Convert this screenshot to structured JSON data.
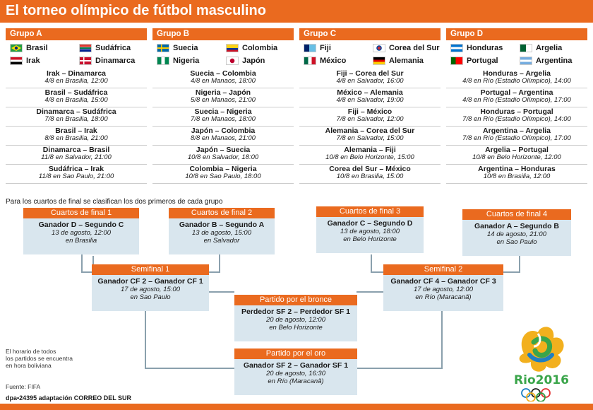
{
  "title": "El torneo olímpico de fútbol masculino",
  "groups": [
    {
      "name": "Grupo A",
      "teams": [
        {
          "name": "Brasil",
          "flag": "brazil"
        },
        {
          "name": "Sudáfrica",
          "flag": "south-africa"
        },
        {
          "name": "Irak",
          "flag": "iraq"
        },
        {
          "name": "Dinamarca",
          "flag": "denmark"
        }
      ],
      "matches": [
        {
          "teams": "Irak – Dinamarca",
          "info": "4/8 en Brasilia, 12:00"
        },
        {
          "teams": "Brasil – Sudáfrica",
          "info": "4/8 en Brasilia, 15:00"
        },
        {
          "teams": "Dinamarca – Sudáfrica",
          "info": "7/8 en Brasilia, 18:00"
        },
        {
          "teams": "Brasil – Irak",
          "info": "8/8 en Brasilia, 21:00"
        },
        {
          "teams": "Dinamarca – Brasil",
          "info": "11/8 en Salvador, 21:00"
        },
        {
          "teams": "Sudáfrica – Irak",
          "info": "11/8 en Sao Paulo, 21:00"
        }
      ]
    },
    {
      "name": "Grupo B",
      "teams": [
        {
          "name": "Suecia",
          "flag": "sweden"
        },
        {
          "name": "Colombia",
          "flag": "colombia"
        },
        {
          "name": "Nigeria",
          "flag": "nigeria"
        },
        {
          "name": "Japón",
          "flag": "japan"
        }
      ],
      "matches": [
        {
          "teams": "Suecia – Colombia",
          "info": "4/8 en Manaos, 18:00"
        },
        {
          "teams": "Nigeria – Japón",
          "info": "5/8 en Manaos, 21:00"
        },
        {
          "teams": "Suecia – Nigeria",
          "info": "7/8 en Manaos, 18:00"
        },
        {
          "teams": "Japón – Colombia",
          "info": "8/8 en Manaos, 21:00"
        },
        {
          "teams": "Japón – Suecia",
          "info": "10/8 en Salvador, 18:00"
        },
        {
          "teams": "Colombia – Nigeria",
          "info": "10/8 en Sao Paulo, 18:00"
        }
      ]
    },
    {
      "name": "Grupo C",
      "teams": [
        {
          "name": "Fiji",
          "flag": "fiji"
        },
        {
          "name": "Corea del Sur",
          "flag": "south-korea"
        },
        {
          "name": "México",
          "flag": "mexico"
        },
        {
          "name": "Alemania",
          "flag": "germany"
        }
      ],
      "matches": [
        {
          "teams": "Fiji – Corea del Sur",
          "info": "4/8 en Salvador, 16:00"
        },
        {
          "teams": "México – Alemania",
          "info": "4/8 en Salvador, 19:00"
        },
        {
          "teams": "Fiji – México",
          "info": "7/8 en Salvador, 12:00"
        },
        {
          "teams": "Alemania – Corea del Sur",
          "info": "7/8 en Salvador, 15:00"
        },
        {
          "teams": "Alemania – Fiji",
          "info": "10/8 en Belo Horizonte, 15:00"
        },
        {
          "teams": "Corea del Sur – México",
          "info": "10/8 en Brasilia, 15:00"
        }
      ]
    },
    {
      "name": "Grupo D",
      "teams": [
        {
          "name": "Honduras",
          "flag": "honduras"
        },
        {
          "name": "Argelia",
          "flag": "algeria"
        },
        {
          "name": "Portugal",
          "flag": "portugal"
        },
        {
          "name": "Argentina",
          "flag": "argentina"
        }
      ],
      "matches": [
        {
          "teams": "Honduras – Argelia",
          "info": "4/8 en Río (Estadio Olímpico), 14:00"
        },
        {
          "teams": "Portugal – Argentina",
          "info": "4/8 en Río (Estadio Olímpico), 17:00"
        },
        {
          "teams": "Honduras – Portugal",
          "info": "7/8 en Río (Estadio Olímpico), 14:00"
        },
        {
          "teams": "Argentina – Argelia",
          "info": "7/8 en Río (Estadio Olímpico), 17:00"
        },
        {
          "teams": "Argelia – Portugal",
          "info": "10/8 en Belo Horizonte, 12:00"
        },
        {
          "teams": "Argentina – Honduras",
          "info": "10/8 en Brasilia, 12:00"
        }
      ]
    }
  ],
  "note": "Para los cuartos de final se clasifican los dos primeros de cada grupo",
  "bracket": {
    "qf1": {
      "title": "Cuartos de final  1",
      "teams": "Ganador D – Segundo C",
      "date": "13 de agosto, 12:00",
      "venue": "en Brasilia"
    },
    "qf2": {
      "title": "Cuartos de final  2",
      "teams": "Ganador B – Segundo  A",
      "date": "13 de agosto, 15:00",
      "venue": "en Salvador"
    },
    "qf3": {
      "title": "Cuartos de final  3",
      "teams": "Ganador C – Segundo D",
      "date": "13 de agosto, 18:00",
      "venue": "en Belo Horizonte"
    },
    "qf4": {
      "title": "Cuartos de final  4",
      "teams": "Ganador A – Segundo B",
      "date": "14 de agosto, 21:00",
      "venue": "en Sao Paulo"
    },
    "sf1": {
      "title": "Semifinal 1",
      "teams": "Ganador CF 2 – Ganador CF 1",
      "date": "17 de agosto, 15:00",
      "venue": "en Sao Paulo"
    },
    "sf2": {
      "title": "Semifinal 2",
      "teams": "Ganador CF 4 – Ganador CF 3",
      "date": "17 de agosto, 12:00",
      "venue": "en Río (Maracanã)"
    },
    "bronze": {
      "title": "Partido por el bronce",
      "teams": "Perdedor SF 2 – Perdedor SF 1",
      "date": "20 de agosto, 12:00",
      "venue": "en Belo Horizonte"
    },
    "gold": {
      "title": "Partido por el oro",
      "teams": "Ganador SF 2 – Ganador SF 1",
      "date": "20 de agosto, 16:30",
      "venue": "en Río (Maracanã)"
    }
  },
  "side_note": [
    "El horario de todos",
    "los partidos se encuentra",
    "en hora boliviana"
  ],
  "source": "Fuente: FIFA",
  "credit": "dpa•24395 adaptación CORREO DEL SUR",
  "logo_text": "Rio2016",
  "colors": {
    "accent": "#ea6a1f",
    "box": "#d9e6ee",
    "line": "#8aa0ad"
  }
}
